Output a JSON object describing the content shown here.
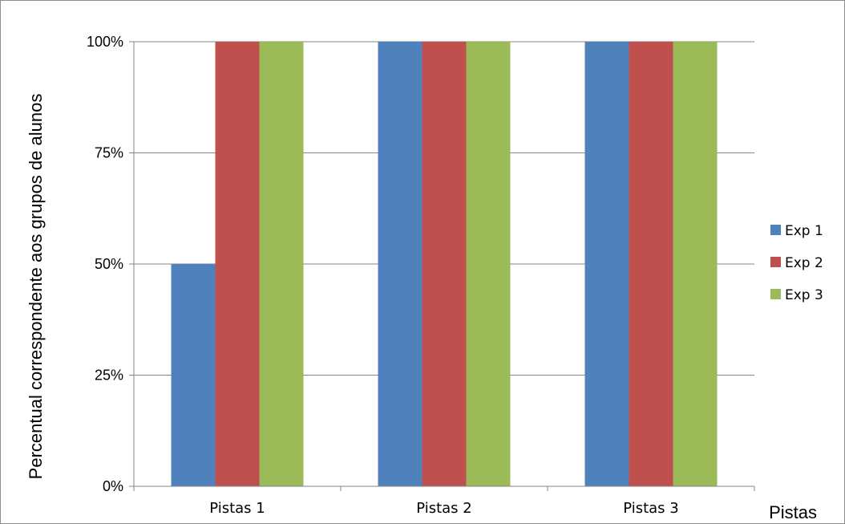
{
  "chart_data": {
    "type": "bar",
    "xlabel": "Pistas",
    "ylabel": "Percentual correspondente aos grupos de alunos",
    "categories": [
      "Pistas 1",
      "Pistas 2",
      "Pistas 3"
    ],
    "series": [
      {
        "name": "Exp 1",
        "color": "#4f81bd",
        "values": [
          50,
          100,
          100
        ]
      },
      {
        "name": "Exp 2",
        "color": "#c0504d",
        "values": [
          100,
          100,
          100
        ]
      },
      {
        "name": "Exp 3",
        "color": "#9bbb59",
        "values": [
          100,
          100,
          100
        ]
      }
    ],
    "ylim": [
      0,
      100
    ],
    "yticks": [
      0,
      25,
      50,
      75,
      100
    ],
    "ytick_labels": [
      "0%",
      "25%",
      "50%",
      "75%",
      "100%"
    ],
    "grid": true,
    "legend_position": "right"
  }
}
